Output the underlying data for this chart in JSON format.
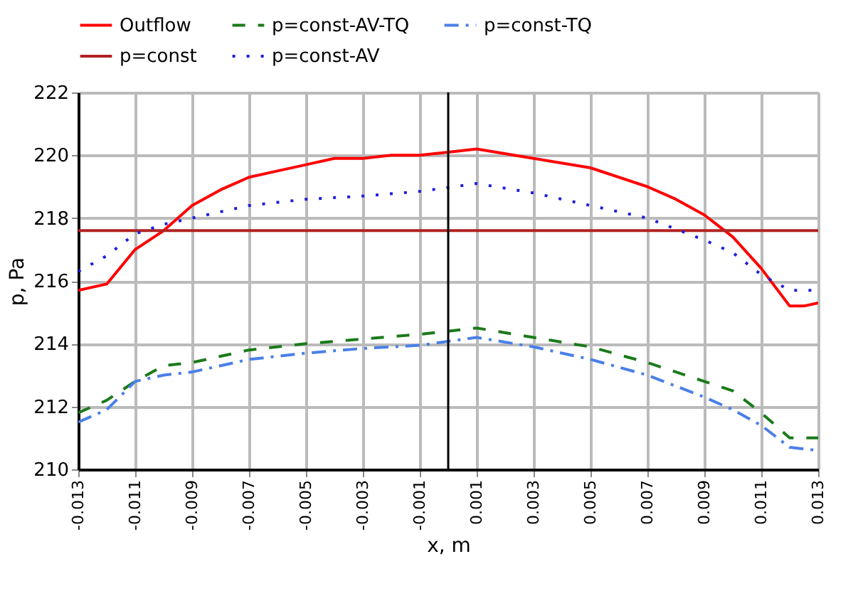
{
  "chart_data": {
    "type": "line",
    "xlabel": "x, m",
    "ylabel": "p, Pa",
    "xlim": [
      -0.013,
      0.013
    ],
    "xticks": [
      -0.013,
      -0.011,
      -0.009,
      -0.007,
      -0.005,
      -0.003,
      -0.001,
      0.001,
      0.003,
      0.005,
      0.007,
      0.009,
      0.011,
      0.013
    ],
    "ylim": [
      210,
      222
    ],
    "yticks": [
      210,
      212,
      214,
      216,
      218,
      220,
      222
    ],
    "grid": true,
    "legend": "top",
    "ref_lines": [
      {
        "axis": "x",
        "value": 0,
        "color": "#000000"
      }
    ],
    "series": [
      {
        "name": "Outflow",
        "color": "#ff0000",
        "line_style": "solid",
        "x": [
          -0.013,
          -0.012,
          -0.011,
          -0.01,
          -0.009,
          -0.008,
          -0.007,
          -0.006,
          -0.005,
          -0.004,
          -0.003,
          -0.002,
          -0.001,
          0,
          0.001,
          0.003,
          0.005,
          0.007,
          0.008,
          0.009,
          0.01,
          0.011,
          0.012,
          0.0125,
          0.013
        ],
        "values": [
          215.7,
          215.9,
          217.0,
          217.6,
          218.4,
          218.9,
          219.3,
          219.5,
          219.7,
          219.9,
          219.9,
          220.0,
          220.0,
          220.1,
          220.2,
          219.9,
          219.6,
          219.0,
          218.6,
          218.1,
          217.4,
          216.4,
          215.2,
          215.2,
          215.3
        ]
      },
      {
        "name": "p=const-AV-TQ",
        "color": "#1a7a1a",
        "line_style": "dashed",
        "x": [
          -0.013,
          -0.012,
          -0.011,
          -0.01,
          -0.009,
          -0.007,
          -0.005,
          -0.003,
          -0.001,
          0,
          0.001,
          0.003,
          0.005,
          0.007,
          0.009,
          0.01,
          0.011,
          0.012,
          0.013
        ],
        "values": [
          211.8,
          212.2,
          212.8,
          213.3,
          213.4,
          213.8,
          214.0,
          214.15,
          214.3,
          214.4,
          214.5,
          214.2,
          213.9,
          213.4,
          212.8,
          212.5,
          211.8,
          211.0,
          211.0
        ]
      },
      {
        "name": "p=const-TQ",
        "color": "#4a7fe8",
        "line_style": "dashdot",
        "x": [
          -0.013,
          -0.012,
          -0.011,
          -0.01,
          -0.009,
          -0.007,
          -0.005,
          -0.003,
          -0.001,
          0.001,
          0.003,
          0.005,
          0.007,
          0.009,
          0.01,
          0.011,
          0.012,
          0.013
        ],
        "values": [
          211.5,
          211.9,
          212.8,
          213.0,
          213.1,
          213.5,
          213.7,
          213.85,
          213.95,
          214.2,
          213.9,
          213.5,
          213.0,
          212.3,
          211.9,
          211.4,
          210.7,
          210.6
        ]
      },
      {
        "name": "p=const",
        "color": "#b22222",
        "line_style": "solid",
        "x": [
          -0.013,
          0.013
        ],
        "values": [
          217.6,
          217.6
        ]
      },
      {
        "name": "p=const-AV",
        "color": "#1f1fdd",
        "line_style": "dotted",
        "x": [
          -0.013,
          -0.012,
          -0.011,
          -0.01,
          -0.009,
          -0.007,
          -0.005,
          -0.003,
          -0.001,
          0.001,
          0.003,
          0.005,
          0.007,
          0.009,
          0.01,
          0.011,
          0.012,
          0.013
        ],
        "values": [
          216.3,
          216.8,
          217.5,
          217.8,
          218.0,
          218.4,
          218.6,
          218.7,
          218.85,
          219.1,
          218.8,
          218.4,
          218.0,
          217.3,
          216.9,
          216.2,
          215.7,
          215.7
        ]
      }
    ]
  }
}
